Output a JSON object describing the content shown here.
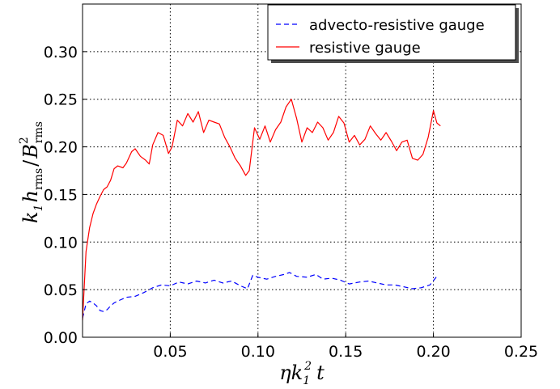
{
  "chart_data": {
    "type": "line",
    "title": "",
    "xlabel": "ηk₁² t",
    "ylabel": "k₁ h_rms / B²_rms",
    "xlim": [
      0.0,
      0.25
    ],
    "ylim": [
      0.0,
      0.35
    ],
    "xticks": [
      0.05,
      0.1,
      0.15,
      0.2,
      0.25
    ],
    "xtick_labels": [
      "0.05",
      "0.10",
      "0.15",
      "0.20",
      "0.25"
    ],
    "yticks": [
      0.0,
      0.05,
      0.1,
      0.15,
      0.2,
      0.25,
      0.3
    ],
    "ytick_labels": [
      "0.00",
      "0.05",
      "0.10",
      "0.15",
      "0.20",
      "0.25",
      "0.30"
    ],
    "grid": true,
    "legend_position": "top-right",
    "series": [
      {
        "name": "advecto-resistive gauge",
        "color": "#0000ff",
        "style": "dashed",
        "x": [
          0.0,
          0.002,
          0.004,
          0.006,
          0.008,
          0.01,
          0.012,
          0.014,
          0.016,
          0.018,
          0.02,
          0.025,
          0.03,
          0.035,
          0.04,
          0.045,
          0.05,
          0.055,
          0.06,
          0.065,
          0.07,
          0.075,
          0.08,
          0.085,
          0.09,
          0.094,
          0.097,
          0.1,
          0.105,
          0.11,
          0.115,
          0.118,
          0.122,
          0.128,
          0.133,
          0.137,
          0.142,
          0.147,
          0.152,
          0.158,
          0.163,
          0.168,
          0.173,
          0.178,
          0.183,
          0.188,
          0.193,
          0.198,
          0.202
        ],
        "y": [
          0.02,
          0.035,
          0.038,
          0.036,
          0.033,
          0.028,
          0.027,
          0.029,
          0.033,
          0.036,
          0.038,
          0.042,
          0.043,
          0.047,
          0.052,
          0.055,
          0.054,
          0.058,
          0.056,
          0.059,
          0.057,
          0.06,
          0.057,
          0.059,
          0.054,
          0.051,
          0.065,
          0.063,
          0.061,
          0.064,
          0.066,
          0.068,
          0.064,
          0.063,
          0.066,
          0.061,
          0.062,
          0.06,
          0.056,
          0.058,
          0.059,
          0.057,
          0.055,
          0.055,
          0.053,
          0.051,
          0.052,
          0.055,
          0.064
        ]
      },
      {
        "name": "resistive gauge",
        "color": "#ff0000",
        "style": "solid",
        "x": [
          0.0,
          0.002,
          0.004,
          0.006,
          0.008,
          0.01,
          0.012,
          0.014,
          0.016,
          0.018,
          0.02,
          0.023,
          0.025,
          0.028,
          0.03,
          0.033,
          0.036,
          0.038,
          0.04,
          0.043,
          0.046,
          0.049,
          0.051,
          0.054,
          0.057,
          0.06,
          0.063,
          0.066,
          0.069,
          0.072,
          0.075,
          0.078,
          0.081,
          0.084,
          0.087,
          0.09,
          0.093,
          0.095,
          0.098,
          0.101,
          0.104,
          0.107,
          0.11,
          0.113,
          0.116,
          0.119,
          0.122,
          0.125,
          0.128,
          0.131,
          0.134,
          0.137,
          0.14,
          0.143,
          0.146,
          0.149,
          0.152,
          0.155,
          0.158,
          0.161,
          0.164,
          0.167,
          0.17,
          0.173,
          0.176,
          0.179,
          0.182,
          0.185,
          0.188,
          0.191,
          0.194,
          0.197,
          0.2,
          0.202,
          0.204
        ],
        "y": [
          0.018,
          0.09,
          0.115,
          0.13,
          0.14,
          0.148,
          0.155,
          0.158,
          0.165,
          0.177,
          0.18,
          0.178,
          0.183,
          0.195,
          0.198,
          0.19,
          0.186,
          0.182,
          0.202,
          0.215,
          0.212,
          0.193,
          0.2,
          0.228,
          0.222,
          0.235,
          0.226,
          0.237,
          0.215,
          0.228,
          0.226,
          0.224,
          0.21,
          0.2,
          0.188,
          0.18,
          0.17,
          0.175,
          0.22,
          0.208,
          0.222,
          0.205,
          0.218,
          0.226,
          0.242,
          0.25,
          0.23,
          0.205,
          0.22,
          0.215,
          0.226,
          0.22,
          0.207,
          0.215,
          0.232,
          0.225,
          0.205,
          0.212,
          0.202,
          0.208,
          0.222,
          0.214,
          0.207,
          0.215,
          0.206,
          0.196,
          0.205,
          0.207,
          0.188,
          0.186,
          0.192,
          0.21,
          0.238,
          0.225,
          0.222
        ]
      }
    ]
  }
}
